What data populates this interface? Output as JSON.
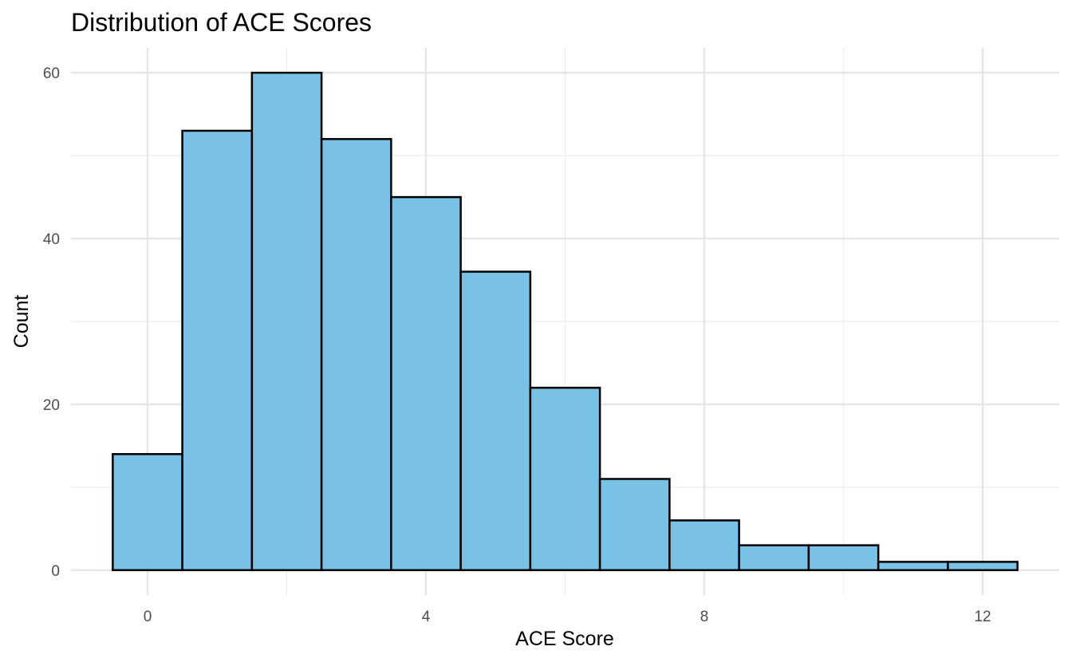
{
  "chart_data": {
    "type": "bar",
    "title": "Distribution of ACE Scores",
    "xlabel": "ACE Score",
    "ylabel": "Count",
    "bin_width": 1,
    "bins": [
      {
        "x": 0,
        "count": 14
      },
      {
        "x": 1,
        "count": 53
      },
      {
        "x": 2,
        "count": 60
      },
      {
        "x": 3,
        "count": 52
      },
      {
        "x": 4,
        "count": 45
      },
      {
        "x": 5,
        "count": 36
      },
      {
        "x": 6,
        "count": 22
      },
      {
        "x": 7,
        "count": 11
      },
      {
        "x": 8,
        "count": 6
      },
      {
        "x": 9,
        "count": 3
      },
      {
        "x": 10,
        "count": 3
      },
      {
        "x": 11,
        "count": 1
      },
      {
        "x": 12,
        "count": 1
      }
    ],
    "x_ticks": [
      0,
      4,
      8,
      12
    ],
    "y_ticks": [
      0,
      20,
      40,
      60
    ],
    "xlim": [
      -1.1,
      13.1
    ],
    "ylim": [
      -3,
      63
    ],
    "bar_fill": "#7AC2E5",
    "bar_outline": "#000000",
    "grid": true,
    "legend": "none"
  }
}
